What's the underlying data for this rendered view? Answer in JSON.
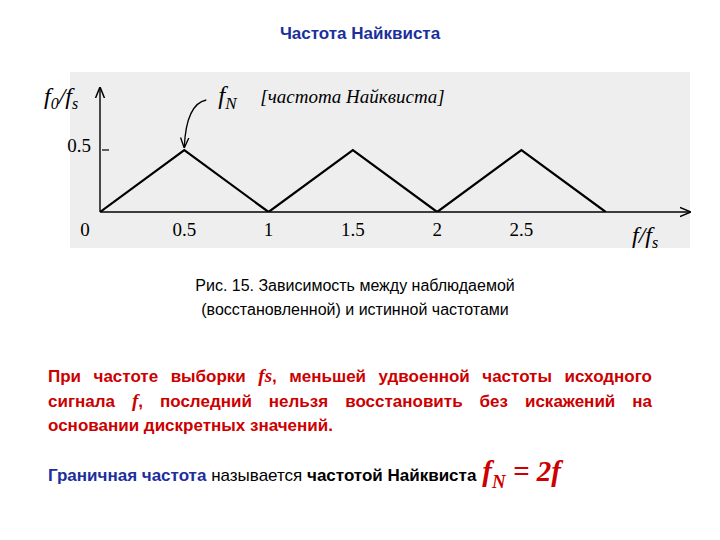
{
  "chart_data": {
    "type": "line",
    "title": "Частота Найквиста",
    "x": [
      0,
      0.5,
      1,
      1.5,
      2,
      2.5,
      3
    ],
    "values": [
      0,
      0.5,
      0,
      0.5,
      0,
      0.5,
      0
    ],
    "color": "#000000",
    "xlim": [
      0,
      3.5
    ],
    "xticks": [
      0,
      0.5,
      1,
      1.5,
      2,
      2.5
    ],
    "ylim": [
      0,
      1
    ],
    "yticks": [
      0.5
    ],
    "grid": false,
    "xlabel": [
      {
        "t": "f"
      },
      {
        "t": "/f"
      },
      {
        "t": "s",
        "sub": true
      }
    ],
    "ylabel": [
      {
        "t": "f"
      },
      {
        "t": "0",
        "sub": true
      },
      {
        "t": "/f"
      },
      {
        "t": "s",
        "sub": true
      }
    ],
    "annotation": {
      "x": 0.5,
      "y": 0.5,
      "label": [
        {
          "t": "f"
        },
        {
          "t": "N",
          "sub": true
        }
      ],
      "note": "[частота Найквиста]"
    }
  },
  "caption": [
    "Рис. 15. Зависимость между наблюдаемой",
    "(восстановленной) и истинной частотами"
  ],
  "statement": [
    {
      "t": "При частоте выборки "
    },
    {
      "t": "fs",
      "var": true
    },
    {
      "t": ", меньшей удвоенной частоты исходного сигнала "
    },
    {
      "t": "f",
      "var": true
    },
    {
      "t": ", последний нельзя восстановить без искажений на основании дискретных значений."
    }
  ],
  "definition": {
    "term": "Граничная частота",
    "verb": " называется ",
    "name": "частотой Найквиста",
    "formula": [
      {
        "t": "f"
      },
      {
        "t": "N",
        "sub": true
      },
      {
        "t": " = 2f"
      }
    ]
  }
}
